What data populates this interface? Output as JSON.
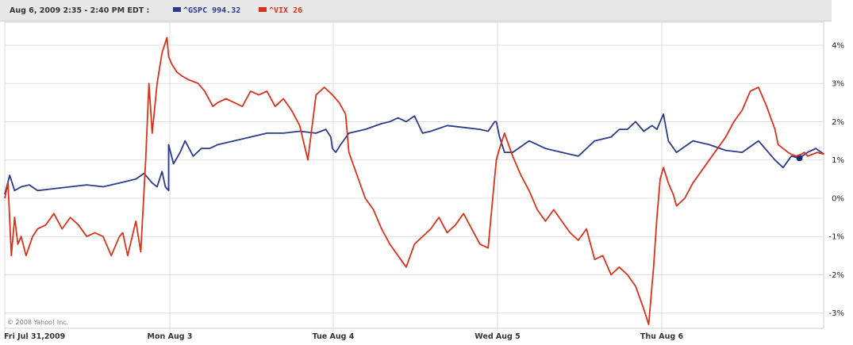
{
  "header": {
    "timestamp": "Aug 6, 2009 2:35 - 2:40 PM EDT :"
  },
  "legend": [
    {
      "label": "^GSPC 994.32",
      "color": "#2b3a8c"
    },
    {
      "label": "^VIX 26",
      "color": "#d9321c"
    }
  ],
  "copyright": "© 2008 Yahoo! Inc.",
  "chart_data": {
    "type": "line",
    "y_ticks": [
      "4%",
      "3%",
      "2%",
      "1%",
      "0%",
      "-1%",
      "-2%",
      "-3%"
    ],
    "y_tick_values": [
      4,
      3,
      2,
      1,
      0,
      -1,
      -2,
      -3
    ],
    "ylim": [
      -3.4,
      4.6
    ],
    "x_labels": [
      "Fri Jul 31,2009",
      "Mon Aug 3",
      "Tue Aug 4",
      "Wed Aug 5",
      "Thu Aug 6"
    ],
    "x_label_positions": [
      0,
      1,
      2,
      3,
      4
    ],
    "xlim": [
      0,
      5
    ],
    "grid": true,
    "series": [
      {
        "name": "^GSPC 994.32",
        "color": "#2b3a8c",
        "x": [
          0.0,
          0.03,
          0.06,
          0.1,
          0.15,
          0.2,
          0.3,
          0.4,
          0.5,
          0.6,
          0.7,
          0.8,
          0.85,
          0.9,
          0.93,
          0.96,
          0.98,
          1.0,
          1.0,
          1.03,
          1.07,
          1.1,
          1.15,
          1.2,
          1.25,
          1.3,
          1.4,
          1.5,
          1.6,
          1.7,
          1.8,
          1.9,
          1.96,
          1.99,
          2.0,
          2.02,
          2.05,
          2.1,
          2.2,
          2.3,
          2.35,
          2.4,
          2.45,
          2.5,
          2.55,
          2.6,
          2.7,
          2.8,
          2.9,
          2.95,
          2.99,
          3.0,
          3.02,
          3.05,
          3.1,
          3.2,
          3.3,
          3.4,
          3.5,
          3.6,
          3.7,
          3.75,
          3.8,
          3.85,
          3.9,
          3.95,
          3.98,
          4.0,
          4.02,
          4.05,
          4.1,
          4.2,
          4.3,
          4.4,
          4.5,
          4.6,
          4.7,
          4.75,
          4.8,
          4.85,
          4.9,
          4.95,
          5.0
        ],
        "values": [
          0.1,
          0.6,
          0.2,
          0.3,
          0.35,
          0.2,
          0.25,
          0.3,
          0.35,
          0.3,
          0.4,
          0.5,
          0.65,
          0.4,
          0.3,
          0.7,
          0.3,
          0.2,
          1.4,
          0.9,
          1.2,
          1.5,
          1.1,
          1.3,
          1.3,
          1.4,
          1.5,
          1.6,
          1.7,
          1.7,
          1.75,
          1.7,
          1.8,
          1.6,
          1.3,
          1.2,
          1.4,
          1.7,
          1.8,
          1.95,
          2.0,
          2.1,
          2.0,
          2.15,
          1.7,
          1.75,
          1.9,
          1.85,
          1.8,
          1.75,
          2.0,
          2.0,
          1.6,
          1.2,
          1.2,
          1.5,
          1.3,
          1.2,
          1.1,
          1.5,
          1.6,
          1.8,
          1.8,
          2.0,
          1.75,
          1.9,
          1.8,
          2.0,
          2.2,
          1.5,
          1.2,
          1.5,
          1.4,
          1.25,
          1.2,
          1.5,
          1.0,
          0.8,
          1.1,
          1.05,
          1.2,
          1.3,
          1.15
        ],
        "end_marker": true
      },
      {
        "name": "^VIX 26",
        "color": "#d9321c",
        "x": [
          0.0,
          0.02,
          0.04,
          0.06,
          0.08,
          0.1,
          0.13,
          0.17,
          0.2,
          0.25,
          0.3,
          0.35,
          0.4,
          0.45,
          0.5,
          0.55,
          0.6,
          0.65,
          0.7,
          0.72,
          0.75,
          0.8,
          0.83,
          0.86,
          0.88,
          0.9,
          0.93,
          0.96,
          0.99,
          1.0,
          1.02,
          1.05,
          1.08,
          1.12,
          1.18,
          1.22,
          1.27,
          1.3,
          1.35,
          1.4,
          1.45,
          1.5,
          1.55,
          1.6,
          1.65,
          1.7,
          1.75,
          1.8,
          1.85,
          1.9,
          1.95,
          2.0,
          2.04,
          2.08,
          2.1,
          2.15,
          2.2,
          2.25,
          2.3,
          2.35,
          2.4,
          2.45,
          2.5,
          2.55,
          2.6,
          2.65,
          2.7,
          2.75,
          2.8,
          2.85,
          2.9,
          2.95,
          2.98,
          3.0,
          3.02,
          3.05,
          3.1,
          3.15,
          3.2,
          3.25,
          3.3,
          3.35,
          3.4,
          3.45,
          3.5,
          3.55,
          3.6,
          3.65,
          3.7,
          3.75,
          3.8,
          3.85,
          3.9,
          3.93,
          3.96,
          3.98,
          4.0,
          4.02,
          4.05,
          4.08,
          4.1,
          4.15,
          4.2,
          4.25,
          4.3,
          4.35,
          4.4,
          4.45,
          4.5,
          4.55,
          4.6,
          4.65,
          4.7,
          4.72,
          4.75,
          4.78,
          4.8,
          4.83,
          4.86,
          4.88,
          4.9,
          4.93,
          4.96,
          5.0
        ],
        "values": [
          0.0,
          0.4,
          -1.5,
          -0.5,
          -1.2,
          -1.0,
          -1.5,
          -1.0,
          -0.8,
          -0.7,
          -0.4,
          -0.8,
          -0.5,
          -0.7,
          -1.0,
          -0.9,
          -1.0,
          -1.5,
          -1.0,
          -0.9,
          -1.5,
          -0.6,
          -1.4,
          1.0,
          3.0,
          1.7,
          3.0,
          3.8,
          4.2,
          3.7,
          3.5,
          3.3,
          3.2,
          3.1,
          3.0,
          2.8,
          2.4,
          2.5,
          2.6,
          2.5,
          2.4,
          2.8,
          2.7,
          2.8,
          2.4,
          2.6,
          2.3,
          1.9,
          1.0,
          2.7,
          2.9,
          2.7,
          2.5,
          2.2,
          1.2,
          0.6,
          0.0,
          -0.3,
          -0.8,
          -1.2,
          -1.5,
          -1.8,
          -1.2,
          -1.0,
          -0.8,
          -0.5,
          -0.9,
          -0.7,
          -0.4,
          -0.8,
          -1.2,
          -1.3,
          0.1,
          1.0,
          1.3,
          1.7,
          1.1,
          0.6,
          0.2,
          -0.3,
          -0.6,
          -0.3,
          -0.6,
          -0.9,
          -1.1,
          -0.8,
          -1.6,
          -1.5,
          -2.0,
          -1.8,
          -2.0,
          -2.3,
          -2.9,
          -3.3,
          -1.8,
          -0.5,
          0.5,
          0.8,
          0.4,
          0.1,
          -0.2,
          0.0,
          0.4,
          0.7,
          1.0,
          1.3,
          1.6,
          2.0,
          2.3,
          2.8,
          2.9,
          2.4,
          1.8,
          1.4,
          1.3,
          1.2,
          1.15,
          1.1,
          1.15,
          1.2,
          1.1,
          1.15,
          1.2,
          1.15
        ]
      }
    ]
  }
}
